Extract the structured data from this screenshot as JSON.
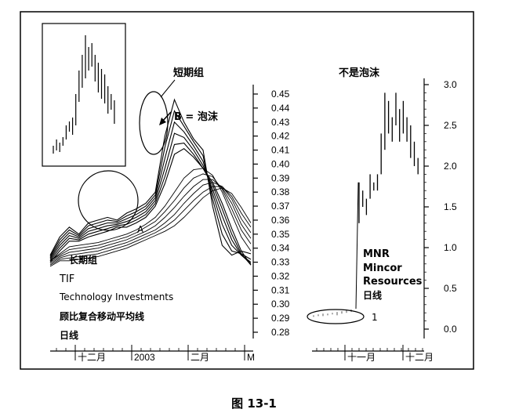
{
  "chart_data": [
    {
      "type": "line",
      "title": "",
      "labels": {
        "short_group": "短期组",
        "bubble": "B = 泡沫",
        "point_a": "A",
        "long_group": "长期组",
        "ticker": "TIF",
        "company": "Technology Investments",
        "indicator": "顾比复合移动平均线",
        "period": "日线"
      },
      "x_ticks": [
        "十二月",
        "2003",
        "二月",
        "M"
      ],
      "y_ticks": [
        "0.45",
        "0.44",
        "0.43",
        "0.42",
        "0.41",
        "0.40",
        "0.39",
        "0.38",
        "0.37",
        "0.36",
        "0.35",
        "0.34",
        "0.33",
        "0.32",
        "0.31",
        "0.30",
        "0.29",
        "0.28"
      ],
      "ylim": [
        0.275,
        0.455
      ],
      "series": [
        {
          "values": [
            0.335,
            0.348,
            0.355,
            0.35,
            0.358,
            0.36,
            0.362,
            0.36,
            0.365,
            0.368,
            0.372,
            0.38,
            0.42,
            0.446,
            0.43,
            0.418,
            0.41,
            0.37,
            0.342,
            0.335,
            0.338,
            0.336
          ]
        },
        {
          "values": [
            0.334,
            0.346,
            0.353,
            0.349,
            0.356,
            0.358,
            0.36,
            0.359,
            0.363,
            0.366,
            0.37,
            0.378,
            0.412,
            0.438,
            0.427,
            0.416,
            0.406,
            0.375,
            0.35,
            0.338,
            0.336,
            0.332
          ]
        },
        {
          "values": [
            0.333,
            0.344,
            0.351,
            0.348,
            0.354,
            0.356,
            0.358,
            0.358,
            0.361,
            0.364,
            0.368,
            0.376,
            0.404,
            0.43,
            0.423,
            0.413,
            0.402,
            0.379,
            0.357,
            0.342,
            0.335,
            0.33
          ]
        },
        {
          "values": [
            0.332,
            0.342,
            0.349,
            0.347,
            0.352,
            0.354,
            0.356,
            0.357,
            0.359,
            0.362,
            0.366,
            0.374,
            0.397,
            0.422,
            0.419,
            0.41,
            0.399,
            0.382,
            0.363,
            0.346,
            0.335,
            0.329
          ]
        },
        {
          "values": [
            0.331,
            0.34,
            0.347,
            0.346,
            0.35,
            0.352,
            0.354,
            0.356,
            0.357,
            0.36,
            0.364,
            0.372,
            0.391,
            0.414,
            0.415,
            0.407,
            0.397,
            0.385,
            0.368,
            0.35,
            0.336,
            0.328
          ]
        },
        {
          "values": [
            0.33,
            0.338,
            0.345,
            0.345,
            0.348,
            0.35,
            0.352,
            0.355,
            0.355,
            0.358,
            0.362,
            0.37,
            0.386,
            0.407,
            0.411,
            0.405,
            0.397,
            0.387,
            0.372,
            0.354,
            0.338,
            0.328
          ]
        },
        {
          "values": [
            0.331,
            0.336,
            0.341,
            0.342,
            0.343,
            0.344,
            0.346,
            0.348,
            0.35,
            0.353,
            0.357,
            0.362,
            0.37,
            0.38,
            0.39,
            0.396,
            0.397,
            0.392,
            0.38,
            0.364,
            0.348,
            0.338
          ]
        },
        {
          "values": [
            0.331,
            0.335,
            0.339,
            0.34,
            0.341,
            0.342,
            0.344,
            0.346,
            0.348,
            0.351,
            0.355,
            0.359,
            0.366,
            0.374,
            0.383,
            0.39,
            0.393,
            0.391,
            0.382,
            0.368,
            0.353,
            0.343
          ]
        },
        {
          "values": [
            0.33,
            0.334,
            0.337,
            0.338,
            0.339,
            0.34,
            0.342,
            0.344,
            0.346,
            0.349,
            0.352,
            0.356,
            0.362,
            0.369,
            0.377,
            0.384,
            0.389,
            0.389,
            0.383,
            0.372,
            0.357,
            0.347
          ]
        },
        {
          "values": [
            0.329,
            0.333,
            0.335,
            0.336,
            0.337,
            0.338,
            0.34,
            0.342,
            0.344,
            0.347,
            0.35,
            0.353,
            0.358,
            0.364,
            0.372,
            0.379,
            0.385,
            0.387,
            0.384,
            0.375,
            0.361,
            0.351
          ]
        },
        {
          "values": [
            0.328,
            0.332,
            0.333,
            0.334,
            0.335,
            0.336,
            0.338,
            0.34,
            0.342,
            0.345,
            0.348,
            0.351,
            0.355,
            0.36,
            0.367,
            0.374,
            0.38,
            0.384,
            0.384,
            0.377,
            0.365,
            0.355
          ]
        },
        {
          "values": [
            0.327,
            0.331,
            0.331,
            0.332,
            0.333,
            0.334,
            0.336,
            0.338,
            0.34,
            0.343,
            0.346,
            0.349,
            0.352,
            0.356,
            0.362,
            0.369,
            0.376,
            0.381,
            0.383,
            0.379,
            0.369,
            0.358
          ]
        }
      ]
    },
    {
      "type": "bar",
      "title": "不是泡沫",
      "labels": {
        "ticker": "MNR",
        "company_1": "Mincor",
        "company_2": "Resources",
        "period": "日线",
        "marker": "1"
      },
      "x_ticks": [
        "十一月",
        "十二月"
      ],
      "y_ticks": [
        "3.0",
        "2.5",
        "2.0",
        "1.5",
        "1.0",
        "0.5",
        "0.0"
      ],
      "ylim": [
        -0.1,
        3.05
      ],
      "ohlc_before": [
        [
          0.15,
          0.17
        ],
        [
          0.16,
          0.18
        ],
        [
          0.16,
          0.19
        ],
        [
          0.17,
          0.19
        ],
        [
          0.18,
          0.2
        ],
        [
          0.17,
          0.21
        ],
        [
          0.19,
          0.22
        ],
        [
          0.2,
          0.23
        ],
        [
          0.21,
          0.24
        ]
      ],
      "ohlc_after": [
        [
          1.3,
          1.8
        ],
        [
          1.5,
          1.7
        ],
        [
          1.4,
          1.6
        ],
        [
          1.6,
          1.9
        ],
        [
          1.7,
          1.8
        ],
        [
          1.7,
          1.9
        ],
        [
          1.9,
          2.4
        ],
        [
          2.2,
          2.9
        ],
        [
          2.4,
          2.8
        ],
        [
          2.3,
          2.6
        ],
        [
          2.5,
          2.9
        ],
        [
          2.3,
          2.7
        ],
        [
          2.4,
          2.8
        ],
        [
          2.3,
          2.6
        ],
        [
          2.1,
          2.5
        ],
        [
          2.0,
          2.3
        ],
        [
          1.9,
          2.1
        ]
      ]
    }
  ],
  "caption": "图 13-1"
}
